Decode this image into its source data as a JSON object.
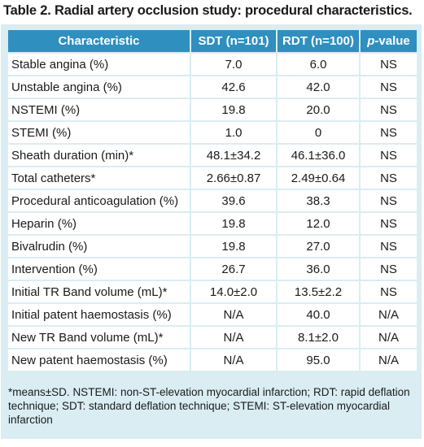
{
  "caption": "Table 2. Radial artery occlusion study: procedural characteristics.",
  "table": {
    "headers": {
      "characteristic": "Characteristic",
      "sdt": "SDT (n=101)",
      "rdt": "RDT (n=100)",
      "p_prefix": "p",
      "p_suffix": "-value"
    },
    "rows": [
      [
        "Stable angina (%)",
        "7.0",
        "6.0",
        "NS"
      ],
      [
        "Unstable angina (%)",
        "42.6",
        "42.0",
        "NS"
      ],
      [
        "NSTEMI (%)",
        "19.8",
        "20.0",
        "NS"
      ],
      [
        "STEMI (%)",
        "1.0",
        "0",
        "NS"
      ],
      [
        "Sheath duration (min)*",
        "48.1±34.2",
        "46.1±36.0",
        "NS"
      ],
      [
        "Total catheters*",
        "2.66±0.87",
        "2.49±0.64",
        "NS"
      ],
      [
        "Procedural anticoagulation (%)",
        "39.6",
        "38.3",
        "NS"
      ],
      [
        "Heparin (%)",
        "19.8",
        "12.0",
        "NS"
      ],
      [
        "Bivalrudin (%)",
        "19.8",
        "27.0",
        "NS"
      ],
      [
        "Intervention (%)",
        "26.7",
        "36.0",
        "NS"
      ],
      [
        "Initial TR Band volume (mL)*",
        "14.0±2.0",
        "13.5±2.2",
        "NS"
      ],
      [
        "Initial patent haemostasis (%)",
        "N/A",
        "40.0",
        "N/A"
      ],
      [
        "New TR Band volume (mL)*",
        "N/A",
        "8.1±2.0",
        "N/A"
      ],
      [
        "New patent haemostasis (%)",
        "N/A",
        "95.0",
        "N/A"
      ]
    ]
  },
  "footnote": "*means±SD. NSTEMI: non-ST-elevation myocardial infarction; RDT: rapid deflation technique; SDT: standard deflation technique; STEMI: ST-elevation myocardial infarction"
}
